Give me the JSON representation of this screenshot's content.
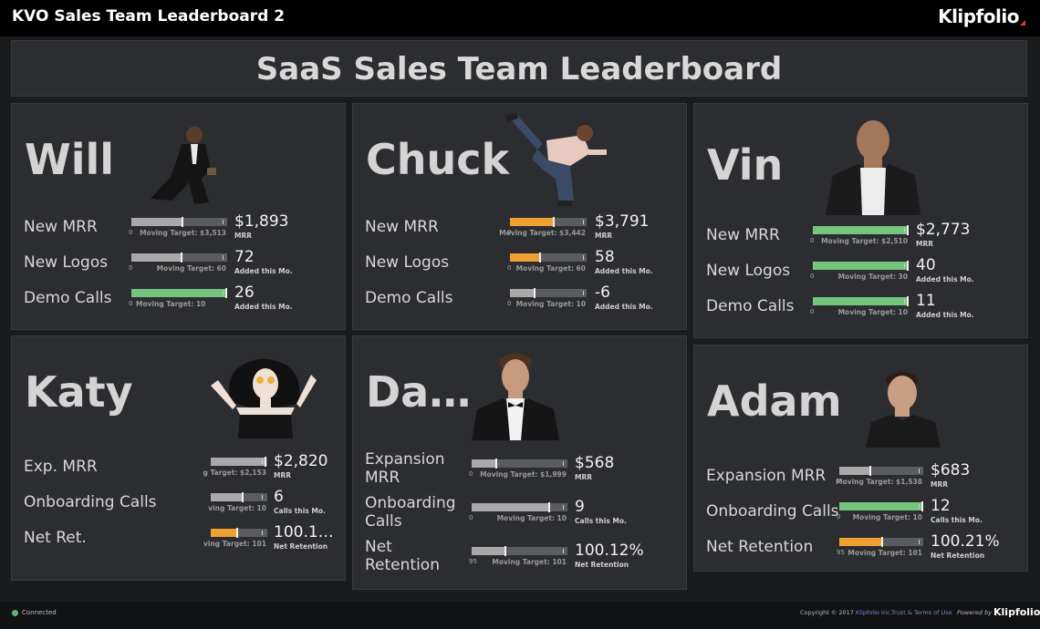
{
  "app": {
    "title": "KVO Sales Team Leaderboard 2",
    "brand": "Klipfolio"
  },
  "header": {
    "title": "SaaS Sales Team Leaderboard"
  },
  "colors": {
    "gray_fill": "#a9a9a9",
    "orange_fill": "#f0a033",
    "green_fill": "#74c47d",
    "track": "#5b5c5f"
  },
  "cards": {
    "will": {
      "name": "Will",
      "metrics": [
        {
          "label": "New MRR",
          "zero": "0",
          "caption": "Moving Target: $3,513",
          "value": "$1,893",
          "sub": "MRR",
          "fill": 0.54,
          "target": 0.95,
          "color": "gray"
        },
        {
          "label": "New Logos",
          "zero": "0",
          "caption": "Moving Target: 60",
          "value": "72",
          "sub": "Added this Mo.",
          "fill": 0.53,
          "target": 0.95,
          "color": "gray"
        },
        {
          "label": "Demo Calls",
          "zero": "0",
          "caption": "Moving Target: 10",
          "value": "26",
          "sub": "Added this Mo.",
          "fill": 1.0,
          "target": 0.95,
          "color": "green"
        }
      ]
    },
    "chuck": {
      "name": "Chuck",
      "metrics": [
        {
          "label": "New MRR",
          "zero": "0",
          "caption": "Moving Target: $3,442",
          "value": "$3,791",
          "sub": "MRR",
          "fill": 0.58,
          "target": 0.95,
          "color": "orange"
        },
        {
          "label": "New Logos",
          "zero": "0",
          "caption": "Moving Target: 60",
          "value": "58",
          "sub": "Added this Mo.",
          "fill": 0.41,
          "target": 0.95,
          "color": "orange"
        },
        {
          "label": "Demo Calls",
          "zero": "0",
          "caption": "Moving Target: 10",
          "value": "-6",
          "sub": "Added this Mo.",
          "fill": 0.33,
          "target": 0.95,
          "color": "gray"
        }
      ]
    },
    "vin": {
      "name": "Vin",
      "metrics": [
        {
          "label": "New MRR",
          "zero": "0",
          "caption": "Moving Target: $2,510",
          "value": "$2,773",
          "sub": "MRR",
          "fill": 1.0,
          "target": 0.95,
          "color": "green"
        },
        {
          "label": "New Logos",
          "zero": "0",
          "caption": "Moving Target: 30",
          "value": "40",
          "sub": "Added this Mo.",
          "fill": 1.0,
          "target": 0.95,
          "color": "green"
        },
        {
          "label": "Demo Calls",
          "zero": "0",
          "caption": "Moving Target: 10",
          "value": "11",
          "sub": "Added this Mo.",
          "fill": 1.0,
          "target": 0.95,
          "color": "green"
        }
      ]
    },
    "katy": {
      "name": "Katy",
      "metrics": [
        {
          "label": "Exp. MRR",
          "zero": "",
          "caption": "g Target: $2,153",
          "value": "$2,820",
          "sub": "MRR",
          "fill": 0.98,
          "target": 0.9,
          "color": "gray"
        },
        {
          "label": "Onboarding Calls",
          "zero": "",
          "caption": "ving Target: 10",
          "value": "6",
          "sub": "Calls this Mo.",
          "fill": 0.58,
          "target": 0.9,
          "color": "gray"
        },
        {
          "label": "Net Ret.",
          "zero": "",
          "caption": "ving Target: 101",
          "value": "100.1…",
          "sub": "Net Retention",
          "fill": 0.49,
          "target": 0.9,
          "color": "orange"
        }
      ]
    },
    "david": {
      "name": "Da…",
      "metrics": [
        {
          "label": "Expansion MRR",
          "zero": "0",
          "caption": "Moving Target: $1,999",
          "value": "$568",
          "sub": "MRR",
          "fill": 0.27,
          "target": 0.95,
          "color": "gray"
        },
        {
          "label": "Onboarding Calls",
          "zero": "0",
          "caption": "Moving Target: 10",
          "value": "9",
          "sub": "Calls this Mo.",
          "fill": 0.82,
          "target": 0.95,
          "color": "gray"
        },
        {
          "label": "Net Retention",
          "zero": "95",
          "caption": "Moving Target: 101",
          "value": "100.12%",
          "sub": "Net Retention",
          "fill": 0.36,
          "target": 0.95,
          "color": "gray"
        }
      ]
    },
    "adam": {
      "name": "Adam",
      "metrics": [
        {
          "label": "Expansion MRR",
          "zero": "0",
          "caption": "Moving Target: $1,538",
          "value": "$683",
          "sub": "MRR",
          "fill": 0.38,
          "target": 0.95,
          "color": "gray"
        },
        {
          "label": "Onboarding Calls",
          "zero": "0",
          "caption": "Moving Target: 10",
          "value": "12",
          "sub": "Calls this Mo.",
          "fill": 1.0,
          "target": 0.95,
          "color": "green"
        },
        {
          "label": "Net Retention",
          "zero": "95",
          "caption": "Moving Target: 101",
          "value": "100.21%",
          "sub": "Net Retention",
          "fill": 0.52,
          "target": 0.95,
          "color": "orange"
        }
      ]
    }
  },
  "footer": {
    "status": "Connected",
    "copyright_prefix": "Copyright © 2017",
    "copyright_link": "Klipfolio Inc.",
    "terms": "Trust & Terms of Use",
    "powered": "Powered by",
    "brand": "Klipfolio"
  }
}
